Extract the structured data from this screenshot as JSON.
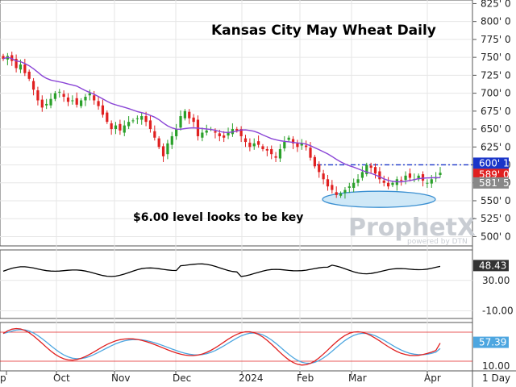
{
  "chart_data": {
    "type": "candlestick",
    "title": "Kansas City May Wheat Daily",
    "annotation": "$6.00 level looks to be key",
    "logo": {
      "name": "ProphetX",
      "sub": "powered by DTN"
    },
    "interval_label": "1 Day",
    "x_labels": [
      "p",
      "Oct",
      "Nov",
      "Dec",
      "2024",
      "Feb",
      "Mar",
      "Apr"
    ],
    "price_axis": {
      "ylim": [
        487,
        830
      ],
      "ticks": [
        "825' 0",
        "800' 0",
        "775' 0",
        "750' 0",
        "725' 0",
        "700' 0",
        "675' 0",
        "650' 0",
        "625' 0",
        "600' 0",
        "575' 0",
        "550' 0",
        "525' 0",
        "500' 0"
      ],
      "tick_values": [
        825,
        800,
        775,
        750,
        725,
        700,
        675,
        650,
        625,
        600,
        575,
        550,
        525,
        500
      ]
    },
    "price_badges": [
      {
        "label": "600' 1",
        "value": 600.1,
        "color": "#1a35c9"
      },
      {
        "label": "589' 0",
        "value": 589.0,
        "color": "#e02020"
      },
      {
        "label": "581' 5",
        "value": 581.6,
        "color": "#888888"
      }
    ],
    "resistance_level": 600.1,
    "support_ellipse_center": 552,
    "up_color": "#2aa02a",
    "down_color": "#e02020",
    "ma_color": "#8a45d6",
    "closes": [
      748,
      752,
      745,
      735,
      740,
      728,
      720,
      705,
      690,
      680,
      685,
      692,
      700,
      702,
      695,
      688,
      690,
      684,
      690,
      695,
      700,
      690,
      682,
      670,
      660,
      650,
      655,
      648,
      655,
      660,
      662,
      665,
      668,
      660,
      650,
      638,
      625,
      612,
      630,
      640,
      650,
      668,
      675,
      665,
      660,
      640,
      645,
      648,
      650,
      645,
      640,
      638,
      645,
      650,
      648,
      640,
      632,
      625,
      630,
      628,
      622,
      620,
      615,
      610,
      622,
      632,
      638,
      630,
      625,
      630,
      625,
      610,
      598,
      590,
      580,
      570,
      565,
      558,
      560,
      565,
      570,
      575,
      580,
      590,
      600,
      596,
      588,
      580,
      575,
      570,
      575,
      580,
      578,
      585,
      582,
      580,
      585,
      578,
      575,
      580,
      583,
      589
    ],
    "indicator1": {
      "label": "48.43",
      "ticks": [
        "30.00",
        "-10.00"
      ],
      "ylim": [
        -20,
        70
      ],
      "tick_values": [
        30,
        -10
      ],
      "last": 48.43
    },
    "indicator2": {
      "label": "57.39",
      "ticks": [
        "10.00"
      ],
      "ylim": [
        0,
        100
      ],
      "tick_values": [
        10
      ],
      "last": 57.39,
      "upper_band": 80,
      "lower_band": 20,
      "fast_color": "#e02020",
      "slow_color": "#4da6e0"
    }
  }
}
